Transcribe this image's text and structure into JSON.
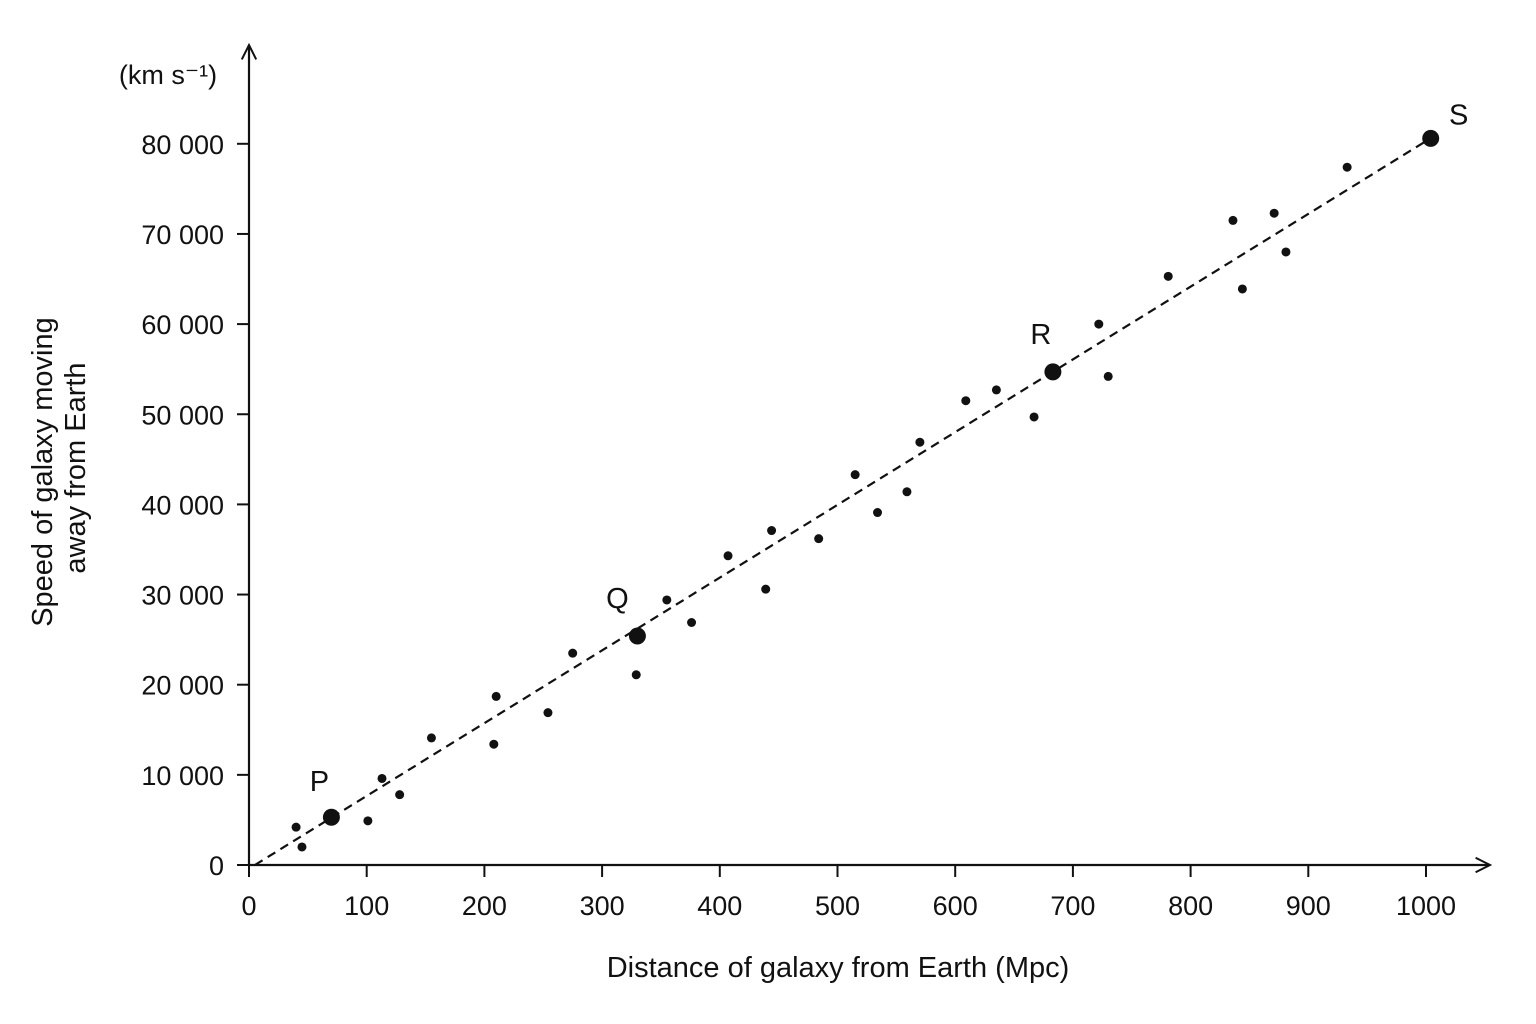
{
  "chart_data": {
    "type": "scatter",
    "xlabel": "Distance of galaxy from Earth (Mpc)",
    "ylabel_lines": [
      "Speed of galaxy moving",
      "away from Earth"
    ],
    "y_unit": "(km s⁻¹)",
    "xlim": [
      0,
      1050
    ],
    "ylim": [
      0,
      85000
    ],
    "x_ticks": [
      0,
      100,
      200,
      300,
      400,
      500,
      600,
      700,
      800,
      900,
      1000
    ],
    "x_tick_labels": [
      "0",
      "100",
      "200",
      "300",
      "400",
      "500",
      "600",
      "700",
      "800",
      "900",
      "1000"
    ],
    "y_ticks": [
      0,
      10000,
      20000,
      30000,
      40000,
      50000,
      60000,
      70000,
      80000
    ],
    "y_tick_labels": [
      "0",
      "10 000",
      "20 000",
      "30 000",
      "40 000",
      "50 000",
      "60 000",
      "70 000",
      "80 000"
    ],
    "grid": false,
    "trend_line": {
      "style": "dashed",
      "x": [
        5,
        1005
      ],
      "y": [
        0,
        80700
      ]
    },
    "points": [
      {
        "x": 40,
        "y": 4200
      },
      {
        "x": 45,
        "y": 2000
      },
      {
        "x": 101,
        "y": 4900
      },
      {
        "x": 113,
        "y": 9600
      },
      {
        "x": 128,
        "y": 7800
      },
      {
        "x": 155,
        "y": 14100
      },
      {
        "x": 208,
        "y": 13400
      },
      {
        "x": 210,
        "y": 18700
      },
      {
        "x": 254,
        "y": 16900
      },
      {
        "x": 275,
        "y": 23500
      },
      {
        "x": 329,
        "y": 21100
      },
      {
        "x": 355,
        "y": 29400
      },
      {
        "x": 376,
        "y": 26900
      },
      {
        "x": 407,
        "y": 34300
      },
      {
        "x": 439,
        "y": 30600
      },
      {
        "x": 444,
        "y": 37100
      },
      {
        "x": 484,
        "y": 36200
      },
      {
        "x": 515,
        "y": 43300
      },
      {
        "x": 534,
        "y": 39100
      },
      {
        "x": 559,
        "y": 41400
      },
      {
        "x": 570,
        "y": 46900
      },
      {
        "x": 609,
        "y": 51500
      },
      {
        "x": 635,
        "y": 52700
      },
      {
        "x": 667,
        "y": 49700
      },
      {
        "x": 722,
        "y": 60000
      },
      {
        "x": 730,
        "y": 54200
      },
      {
        "x": 781,
        "y": 65300
      },
      {
        "x": 836,
        "y": 71500
      },
      {
        "x": 844,
        "y": 63900
      },
      {
        "x": 871,
        "y": 72300
      },
      {
        "x": 881,
        "y": 68000
      },
      {
        "x": 933,
        "y": 77400
      }
    ],
    "labeled_points": [
      {
        "label": "P",
        "x": 70,
        "y": 5300
      },
      {
        "label": "Q",
        "x": 330,
        "y": 25400
      },
      {
        "label": "R",
        "x": 683,
        "y": 54700
      },
      {
        "label": "S",
        "x": 1004,
        "y": 80600
      }
    ]
  }
}
